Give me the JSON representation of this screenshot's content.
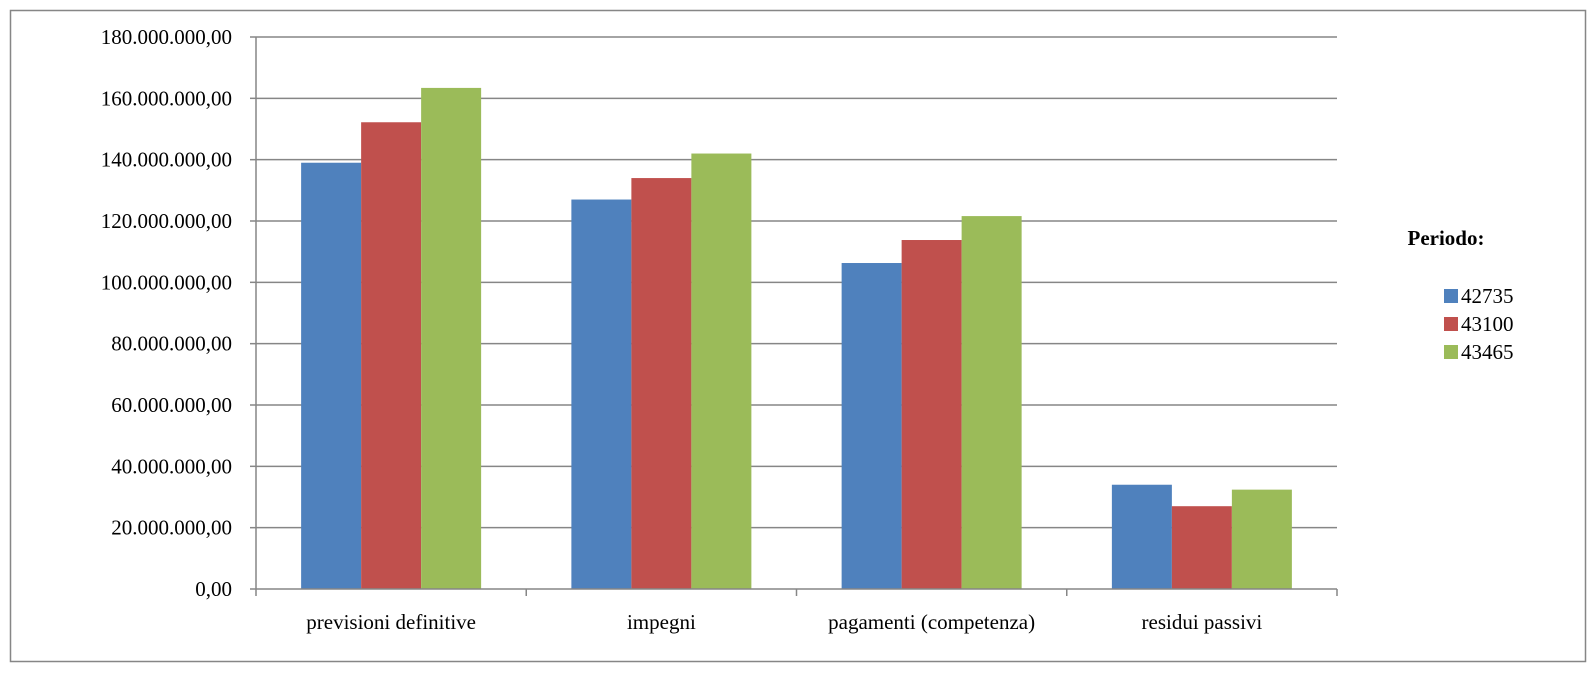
{
  "chart_data": {
    "type": "bar",
    "title": "",
    "xlabel": "",
    "ylabel": "",
    "categories": [
      "previsioni definitive",
      "impegni",
      "pagamenti (competenza)",
      "residui passivi"
    ],
    "series": [
      {
        "name": "42735",
        "color": "#4F81BD",
        "values": [
          139000000,
          127000000,
          106300000,
          34000000
        ]
      },
      {
        "name": "43100",
        "color": "#C0504D",
        "values": [
          152200000,
          134000000,
          113800000,
          27000000
        ]
      },
      {
        "name": "43465",
        "color": "#9BBB59",
        "values": [
          163400000,
          142000000,
          121600000,
          32400000
        ]
      }
    ],
    "ylim": [
      0,
      180000000
    ],
    "yticks": [
      "0,00",
      "20.000.000,00",
      "40.000.000,00",
      "60.000.000,00",
      "80.000.000,00",
      "100.000.000,00",
      "120.000.000,00",
      "140.000.000,00",
      "160.000.000,00",
      "180.000.000,00"
    ],
    "grid": true,
    "legend": {
      "title": "Periodo:",
      "position": "right"
    }
  }
}
